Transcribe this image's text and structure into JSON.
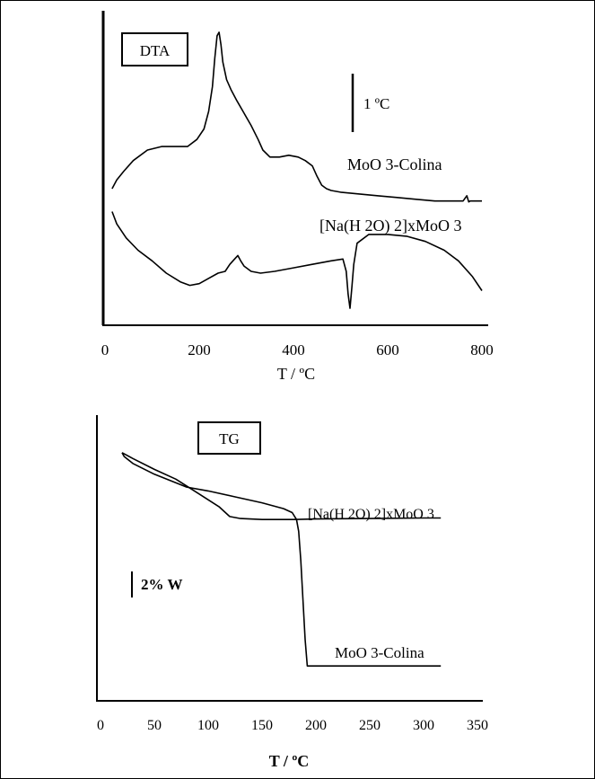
{
  "chart_data": [
    {
      "type": "line",
      "panel_label": "DTA",
      "xlabel": "T / ºC",
      "xlim": [
        0,
        800
      ],
      "x_ticks": [
        "0",
        "200",
        "400",
        "600",
        "800"
      ],
      "scale_bar_label": "1 ºC",
      "series": [
        {
          "name": "MoO 3-Colina",
          "x": [
            15,
            25,
            40,
            60,
            90,
            120,
            150,
            175,
            195,
            210,
            220,
            228,
            233,
            238,
            242,
            246,
            250,
            258,
            268,
            280,
            295,
            310,
            325,
            335,
            350,
            370,
            390,
            410,
            425,
            440,
            450,
            460,
            470,
            480,
            500,
            540,
            580,
            620,
            660,
            700,
            740,
            760,
            768,
            772,
            775,
            785,
            800
          ],
          "y": [
            0.08,
            0.13,
            0.18,
            0.24,
            0.3,
            0.32,
            0.32,
            0.32,
            0.36,
            0.42,
            0.52,
            0.66,
            0.82,
            0.95,
            0.97,
            0.9,
            0.8,
            0.7,
            0.64,
            0.58,
            0.51,
            0.44,
            0.36,
            0.3,
            0.26,
            0.26,
            0.27,
            0.26,
            0.24,
            0.21,
            0.15,
            0.1,
            0.08,
            0.07,
            0.06,
            0.05,
            0.04,
            0.03,
            0.02,
            0.01,
            0.01,
            0.01,
            0.04,
            0.005,
            0.01,
            0.01,
            0.01
          ]
        },
        {
          "name": "[Na(H 2O) 2]xMoO 3",
          "x": [
            15,
            25,
            45,
            70,
            100,
            130,
            160,
            180,
            200,
            220,
            240,
            255,
            265,
            275,
            282,
            288,
            295,
            310,
            330,
            360,
            400,
            440,
            480,
            505,
            512,
            516,
            520,
            524,
            528,
            535,
            560,
            600,
            640,
            680,
            720,
            750,
            780,
            800
          ],
          "y": [
            -0.05,
            -0.12,
            -0.2,
            -0.27,
            -0.33,
            -0.4,
            -0.45,
            -0.47,
            -0.46,
            -0.43,
            -0.4,
            -0.39,
            -0.35,
            -0.32,
            -0.3,
            -0.33,
            -0.36,
            -0.39,
            -0.4,
            -0.39,
            -0.37,
            -0.35,
            -0.33,
            -0.32,
            -0.39,
            -0.52,
            -0.6,
            -0.48,
            -0.35,
            -0.23,
            -0.18,
            -0.18,
            -0.19,
            -0.22,
            -0.27,
            -0.33,
            -0.42,
            -0.5
          ]
        }
      ],
      "ylim": [
        -0.62,
        1.0
      ]
    },
    {
      "type": "line",
      "panel_label": "TG",
      "xlabel": "T / ºC",
      "xlim": [
        0,
        350
      ],
      "x_ticks": [
        "0",
        "50",
        "100",
        "150",
        "200",
        "250",
        "300",
        "350"
      ],
      "scale_bar_label": "2% W",
      "series": [
        {
          "name": "MoO 3-Colina",
          "x": [
            20,
            22,
            30,
            50,
            80,
            100,
            125,
            150,
            170,
            178,
            182,
            184,
            186,
            188,
            190,
            192,
            195,
            200,
            250,
            300,
            316
          ],
          "y": [
            100.0,
            99.6,
            98.9,
            97.8,
            96.5,
            96.1,
            95.5,
            94.9,
            94.3,
            93.9,
            93.2,
            92.0,
            89.0,
            85.0,
            81.0,
            78.3,
            78.3,
            78.3,
            78.3,
            78.3,
            78.3
          ]
        },
        {
          "name": "[Na(H 2O) 2]xMoO 3",
          "x": [
            20,
            30,
            50,
            70,
            90,
            110,
            120,
            130,
            150,
            180,
            200,
            250,
            300,
            316
          ],
          "y": [
            100.0,
            99.4,
            98.3,
            97.3,
            95.9,
            94.5,
            93.5,
            93.3,
            93.2,
            93.2,
            93.25,
            93.3,
            93.35,
            93.35
          ]
        }
      ],
      "ylim": [
        77.5,
        100.8
      ]
    }
  ]
}
